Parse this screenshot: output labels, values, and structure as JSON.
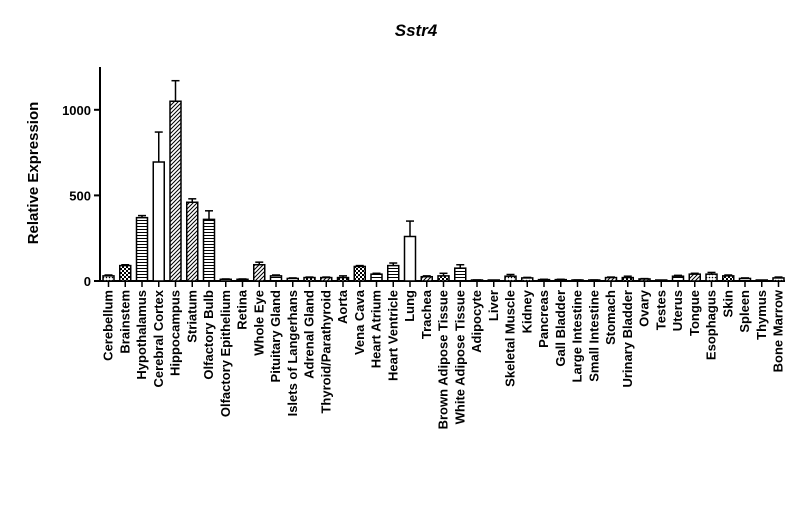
{
  "chart_data": {
    "type": "bar",
    "title": "Sstr4",
    "xlabel": "",
    "ylabel": "Relative Expression",
    "ylim": [
      0,
      1250
    ],
    "yticks": [
      0,
      500,
      1000
    ],
    "grid": false,
    "legend": "none",
    "categories": [
      "Cerebellum",
      "Brainstem",
      "Hypothalamus",
      "Cerebral Cortex",
      "Hippocampus",
      "Striatum",
      "Olfactory Bulb",
      "Olfactory Epithelium",
      "Retina",
      "Whole Eye",
      "Pituitary Gland",
      "Islets of Langerhans",
      "Adrenal Gland",
      "Thyroid/Parathyroid",
      "Aorta",
      "Vena Cava",
      "Heart Atrium",
      "Heart Ventricle",
      "Lung",
      "Trachea",
      "Brown Adipose Tissue",
      "White Adipose Tissue",
      "Adipocyte",
      "Liver",
      "Skeletal Muscle",
      "Kidney",
      "Pancreas",
      "Gall Bladder",
      "Large Intestine",
      "Small Intestine",
      "Stomach",
      "Urinary Bladder",
      "Ovary",
      "Testes",
      "Uterus",
      "Tongue",
      "Esophagus",
      "Skin",
      "Spleen",
      "Thymus",
      "Bone Marrow"
    ],
    "values": [
      30,
      90,
      370,
      695,
      1050,
      460,
      360,
      10,
      10,
      95,
      30,
      15,
      20,
      20,
      20,
      85,
      40,
      90,
      260,
      25,
      30,
      75,
      5,
      3,
      28,
      18,
      8,
      8,
      5,
      5,
      20,
      20,
      12,
      3,
      28,
      40,
      40,
      30,
      15,
      3,
      18
    ],
    "errors": [
      5,
      5,
      12,
      175,
      120,
      20,
      50,
      2,
      2,
      15,
      5,
      3,
      3,
      3,
      10,
      5,
      5,
      15,
      90,
      5,
      15,
      20,
      1,
      1,
      10,
      3,
      2,
      2,
      1,
      1,
      3,
      8,
      2,
      1,
      5,
      5,
      10,
      5,
      3,
      1,
      5
    ],
    "patterns": [
      "dots",
      "checker",
      "hlines",
      "blank",
      "diag",
      "diag",
      "hlines",
      "blank",
      "hlines",
      "diag",
      "hlines",
      "hlines",
      "checker",
      "diag",
      "checker",
      "checker",
      "hlines",
      "hlines",
      "blank",
      "diag",
      "checker",
      "hlines",
      "blank",
      "blank",
      "dots",
      "dots",
      "hlines",
      "hlines",
      "hlines",
      "hlines",
      "diag",
      "checker",
      "diag",
      "blank",
      "hlines",
      "diag",
      "dots",
      "checker",
      "hlines",
      "blank",
      "dots"
    ]
  }
}
